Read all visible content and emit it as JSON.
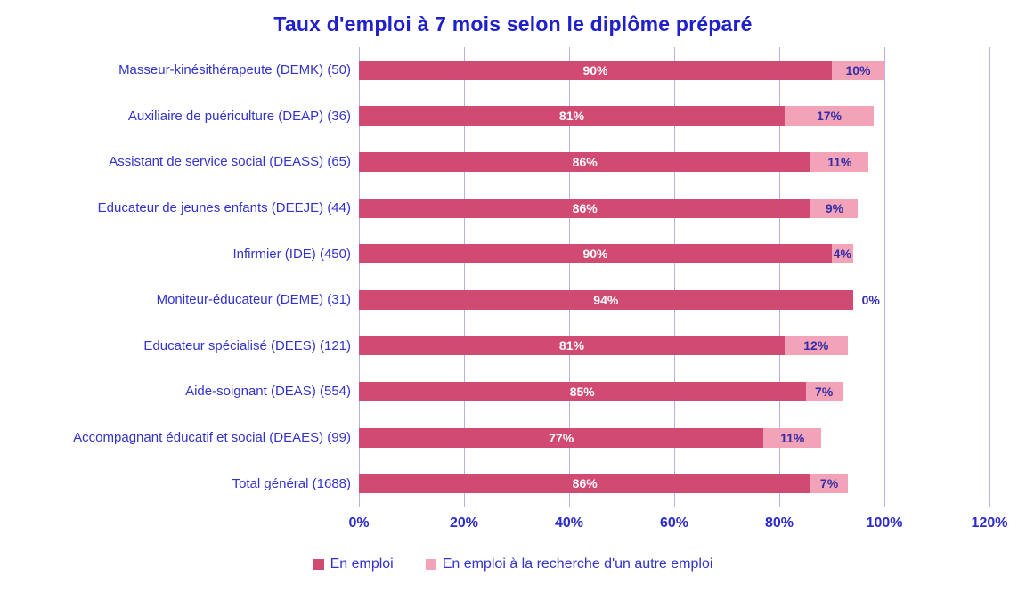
{
  "title": "Taux d'emploi à 7 mois selon le diplôme préparé",
  "colors": {
    "series1": "#d04a72",
    "series2": "#f2a3b7",
    "gridline": "#b7b0e8",
    "title_text": "#2020cc",
    "category_text": "#3333cc",
    "value_on_dark": "#ffffff",
    "value_on_light": "#322da8"
  },
  "chart_data": {
    "type": "bar",
    "orientation": "horizontal",
    "stacked": true,
    "title": "Taux d'emploi à 7 mois selon le diplôme préparé",
    "categories": [
      "Masseur-kinésithérapeute (DEMK) (50)",
      "Auxiliaire de puériculture (DEAP) (36)",
      "Assistant de service social (DEASS) (65)",
      "Educateur de jeunes enfants (DEEJE) (44)",
      "Infirmier (IDE) (450)",
      "Moniteur-éducateur (DEME) (31)",
      "Educateur spécialisé (DEES) (121)",
      "Aide-soignant (DEAS) (554)",
      "Accompagnant éducatif et social (DEAES) (99)",
      "Total général (1688)"
    ],
    "series": [
      {
        "name": "En emploi",
        "color": "#d04a72",
        "values": [
          90,
          81,
          86,
          86,
          90,
          94,
          81,
          85,
          77,
          86
        ]
      },
      {
        "name": "En emploi à la recherche d'un autre emploi",
        "color": "#f2a3b7",
        "values": [
          10,
          17,
          11,
          9,
          4,
          0,
          12,
          7,
          11,
          7
        ]
      }
    ],
    "value_suffix": "%",
    "x_ticks": [
      "0%",
      "20%",
      "40%",
      "60%",
      "80%",
      "100%",
      "120%"
    ],
    "xlim": [
      0,
      120
    ],
    "grid": true,
    "legend_position": "bottom"
  }
}
